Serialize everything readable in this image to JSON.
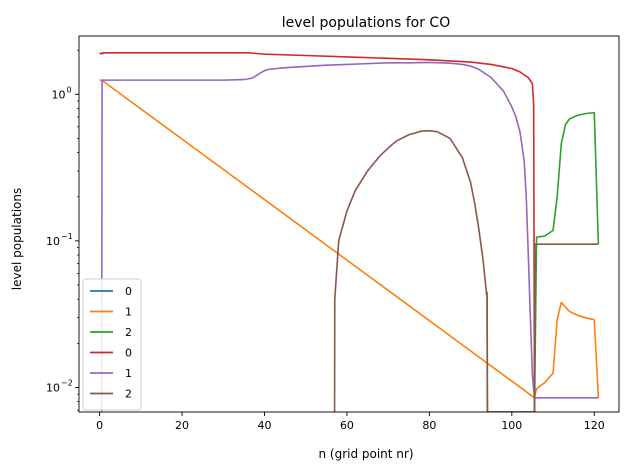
{
  "chart_data": {
    "type": "line",
    "title": "level populations for CO",
    "xlabel": "n (grid point nr)",
    "ylabel": "level populations",
    "xlim": [
      -5,
      126
    ],
    "ylim": [
      0.0068,
      2.5
    ],
    "yscale": "log",
    "grid": false,
    "legend_position": "lower-left",
    "x_ticks": [
      {
        "value": 0,
        "label": "0"
      },
      {
        "value": 20,
        "label": "20"
      },
      {
        "value": 40,
        "label": "40"
      },
      {
        "value": 60,
        "label": "60"
      },
      {
        "value": 80,
        "label": "80"
      },
      {
        "value": 100,
        "label": "100"
      },
      {
        "value": 120,
        "label": "120"
      }
    ],
    "y_ticks": [
      {
        "value": 0.01,
        "label": "10",
        "exp": "−2"
      },
      {
        "value": 0.1,
        "label": "10",
        "exp": "−1"
      },
      {
        "value": 1,
        "label": "10",
        "exp": "0"
      }
    ],
    "series": [
      {
        "name": "0",
        "color": "#1f77b4",
        "x": [
          0,
          0.5,
          1
        ],
        "y": [
          1.9,
          1.9,
          1.9
        ]
      },
      {
        "name": "1",
        "color": "#ff7f0e",
        "x": [
          0,
          0.5,
          105.5,
          106,
          108,
          110,
          111,
          112,
          114,
          116,
          118,
          120,
          121
        ],
        "y": [
          1.25,
          1.25,
          0.0085,
          0.0098,
          0.0108,
          0.0125,
          0.029,
          0.038,
          0.033,
          0.031,
          0.0298,
          0.029,
          0.0085
        ]
      },
      {
        "name": "2",
        "color": "#2ca02c",
        "x": [
          94,
          94.1,
          105.5,
          106,
          108,
          110,
          111,
          112,
          113,
          114,
          116,
          118,
          120,
          121
        ],
        "y": [
          0.045,
          0.0068,
          0.0068,
          0.106,
          0.108,
          0.118,
          0.2,
          0.46,
          0.62,
          0.68,
          0.72,
          0.74,
          0.75,
          0.095
        ]
      },
      {
        "name": "0",
        "color": "#d62728",
        "x": [
          0,
          0.5,
          1,
          10,
          20,
          30,
          36,
          40,
          50,
          60,
          70,
          80,
          90,
          95,
          100,
          102,
          104,
          105,
          105.3,
          105.5
        ],
        "y": [
          1.9,
          1.9,
          1.92,
          1.92,
          1.92,
          1.92,
          1.92,
          1.88,
          1.84,
          1.8,
          1.76,
          1.72,
          1.66,
          1.6,
          1.5,
          1.42,
          1.3,
          1.18,
          0.85,
          0.0068
        ]
      },
      {
        "name": "1",
        "color": "#9467bd",
        "x": [
          0.5,
          0.6,
          1,
          10,
          20,
          30,
          35,
          37,
          38,
          39,
          40,
          41,
          45,
          50,
          55,
          60,
          65,
          70,
          75,
          80,
          85,
          88,
          90,
          92,
          95,
          98,
          100,
          101,
          102,
          103,
          103.5,
          104,
          104.5,
          105,
          105.5,
          106,
          110,
          115,
          121
        ],
        "y": [
          0.0068,
          1.25,
          1.25,
          1.25,
          1.25,
          1.25,
          1.26,
          1.29,
          1.34,
          1.4,
          1.45,
          1.48,
          1.52,
          1.55,
          1.58,
          1.6,
          1.62,
          1.64,
          1.64,
          1.65,
          1.63,
          1.6,
          1.56,
          1.48,
          1.3,
          1.05,
          0.82,
          0.7,
          0.55,
          0.35,
          0.2,
          0.08,
          0.03,
          0.012,
          0.0085,
          0.0085,
          0.0085,
          0.0085,
          0.0085
        ]
      },
      {
        "name": "2",
        "color": "#8c564b",
        "x": [
          57,
          57.05,
          58,
          60,
          62,
          65,
          68,
          70,
          72,
          75,
          78,
          80,
          82,
          85,
          88,
          90,
          91,
          92,
          93,
          94,
          94.05,
          105.5,
          105.6,
          110,
          115,
          121
        ],
        "y": [
          0.0068,
          0.04,
          0.1,
          0.16,
          0.22,
          0.3,
          0.38,
          0.43,
          0.48,
          0.53,
          0.56,
          0.565,
          0.555,
          0.5,
          0.37,
          0.25,
          0.18,
          0.12,
          0.075,
          0.04,
          0.0068,
          0.0068,
          0.095,
          0.095,
          0.095,
          0.095
        ]
      }
    ]
  }
}
